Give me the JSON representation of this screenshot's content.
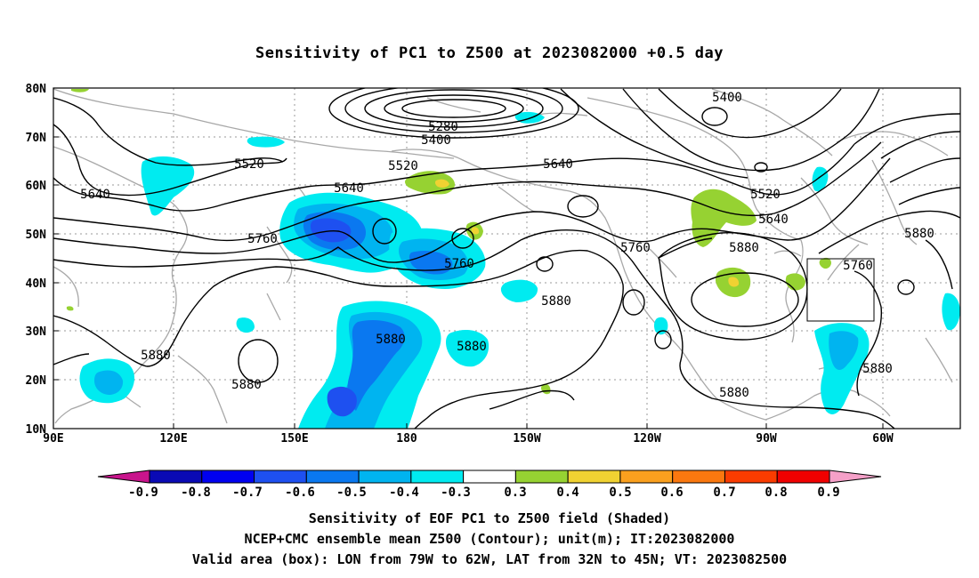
{
  "title": "Sensitivity of PC1 to Z500 at 2023082000 +0.5 day",
  "map": {
    "lat_labels": [
      "80N",
      "70N",
      "60N",
      "50N",
      "40N",
      "30N",
      "20N",
      "10N"
    ],
    "lon_labels": [
      "90E",
      "120E",
      "150E",
      "180",
      "150W",
      "120W",
      "90W",
      "60W"
    ],
    "contour_labels": [
      "5280",
      "5400",
      "5400",
      "5520",
      "5520",
      "5520",
      "5640",
      "5640",
      "5640",
      "5640",
      "5760",
      "5760",
      "5760",
      "5760",
      "5880",
      "5880",
      "5880",
      "5880",
      "5880",
      "5880",
      "5880",
      "5880",
      "5880"
    ],
    "valid_area_box": {
      "lon_from": "79W",
      "lon_to": "62W",
      "lat_from": "32N",
      "lat_to": "45N"
    }
  },
  "colorbar": {
    "labels": [
      "-0.9",
      "-0.8",
      "-0.7",
      "-0.6",
      "-0.5",
      "-0.4",
      "-0.3",
      "0.3",
      "0.4",
      "0.5",
      "0.6",
      "0.7",
      "0.8",
      "0.9"
    ],
    "colors": [
      "#0a0ab4",
      "#0000f0",
      "#1e50f0",
      "#0a78f0",
      "#00b4f0",
      "#00ebf0",
      "#ffffff",
      "#96d232",
      "#f0d232",
      "#faa01e",
      "#fa780f",
      "#fa3c00",
      "#f00000"
    ],
    "low_end_color": "#c8148c",
    "high_end_color": "#f5a0c8"
  },
  "captions": {
    "line1": "Sensitivity of EOF PC1 to Z500 field (Shaded)",
    "line2": "NCEP+CMC ensemble mean Z500 (Contour); unit(m); IT:2023082000",
    "line3": "Valid area (box): LON from 79W to 62W, LAT from 32N to 45N; VT: 2023082500"
  }
}
